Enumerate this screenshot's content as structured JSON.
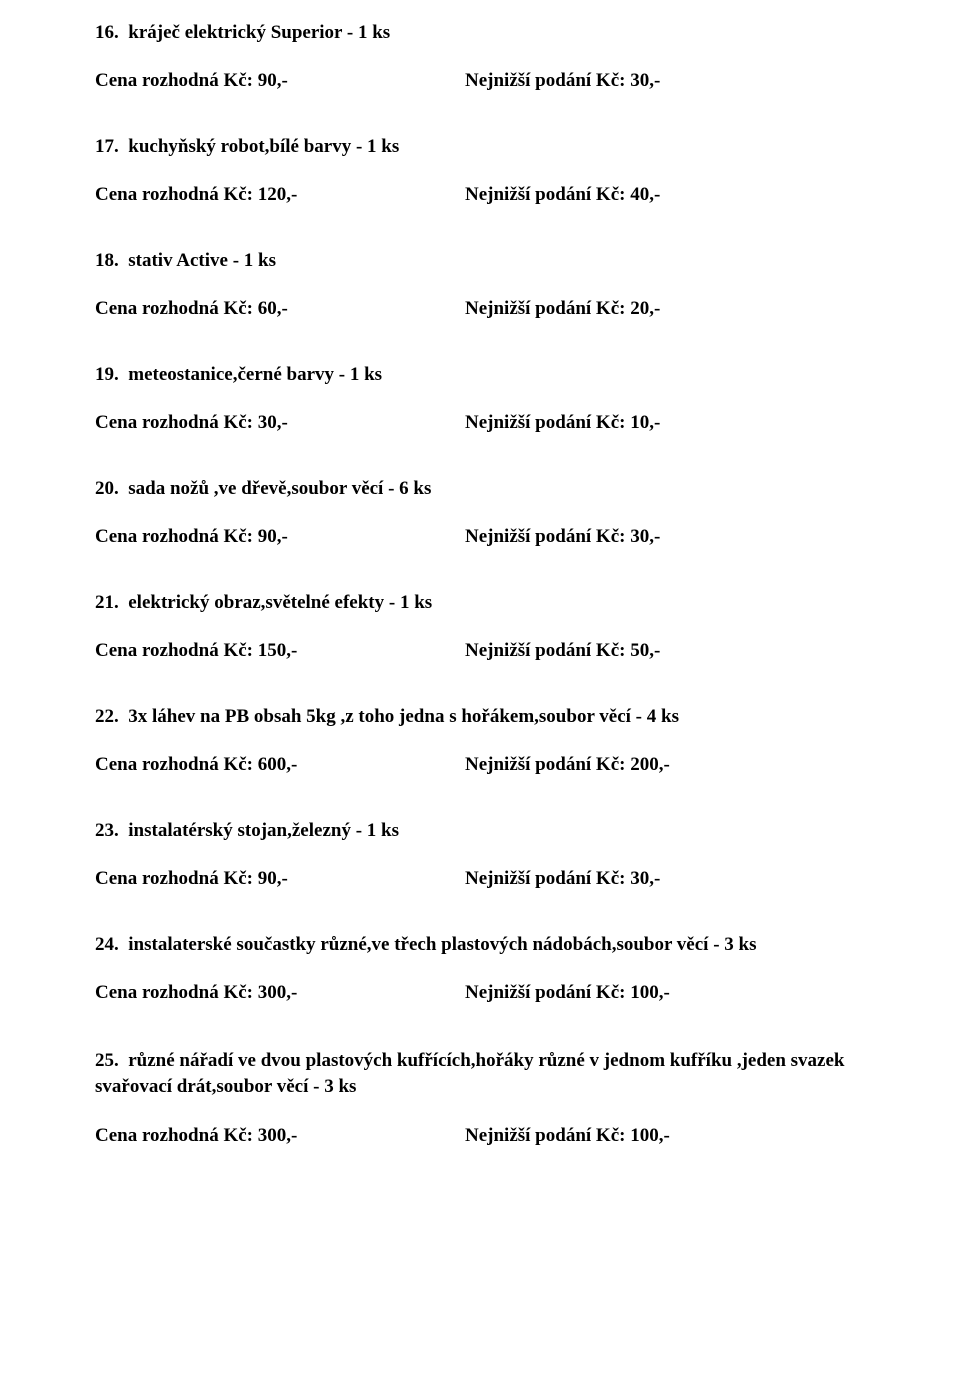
{
  "items": [
    {
      "num": "16.",
      "title": "kráječ elektrický Superior - 1 ks",
      "left": "Cena rozhodná Kč:  90,-",
      "right": "Nejnižší podání Kč: 30,-"
    },
    {
      "num": "17.",
      "title": "kuchyňský robot,bílé barvy - 1 ks",
      "left": "Cena rozhodná Kč:  120,-",
      "right": "Nejnižší podání Kč: 40,-"
    },
    {
      "num": "18.",
      "title": "stativ Active - 1 ks",
      "left": "Cena rozhodná Kč:  60,-",
      "right": "Nejnižší podání Kč: 20,-"
    },
    {
      "num": "19.",
      "title": "meteostanice,černé barvy - 1 ks",
      "left": "Cena rozhodná Kč:  30,-",
      "right": "Nejnižší podání Kč: 10,-"
    },
    {
      "num": "20.",
      "title": "sada nožů ,ve dřevě,soubor věcí - 6 ks",
      "left": "Cena rozhodná Kč:  90,-",
      "right": "Nejnižší podání Kč: 30,-"
    },
    {
      "num": "21.",
      "title": "elektrický obraz,světelné efekty - 1 ks",
      "left": "Cena rozhodná Kč:  150,-",
      "right": "Nejnižší podání Kč: 50,-"
    },
    {
      "num": "22.",
      "title": "3x láhev na PB obsah 5kg ,z toho jedna s hořákem,soubor věcí - 4 ks",
      "left": "Cena rozhodná Kč:  600,-",
      "right": "Nejnižší podání Kč: 200,-"
    },
    {
      "num": "23.",
      "title": "instalatérský stojan,železný - 1 ks",
      "left": "Cena rozhodná Kč:  90,-",
      "right": "Nejnižší podání Kč: 30,-"
    },
    {
      "num": "24.",
      "title": "instalaterské součastky různé,ve třech plastových nádobách,soubor věcí - 3 ks",
      "left": "Cena rozhodná Kč:  300,-",
      "right": "Nejnižší podání Kč: 100,-"
    },
    {
      "num": "25.",
      "title": "různé nářadí ve dvou plastových kufřících,hořáky různé v jednom kufříku ,jeden svazek svařovací drát,soubor věcí - 3 ks",
      "left": "Cena rozhodná Kč:  300,-",
      "right": "Nejnižší podání Kč: 100,-"
    }
  ]
}
